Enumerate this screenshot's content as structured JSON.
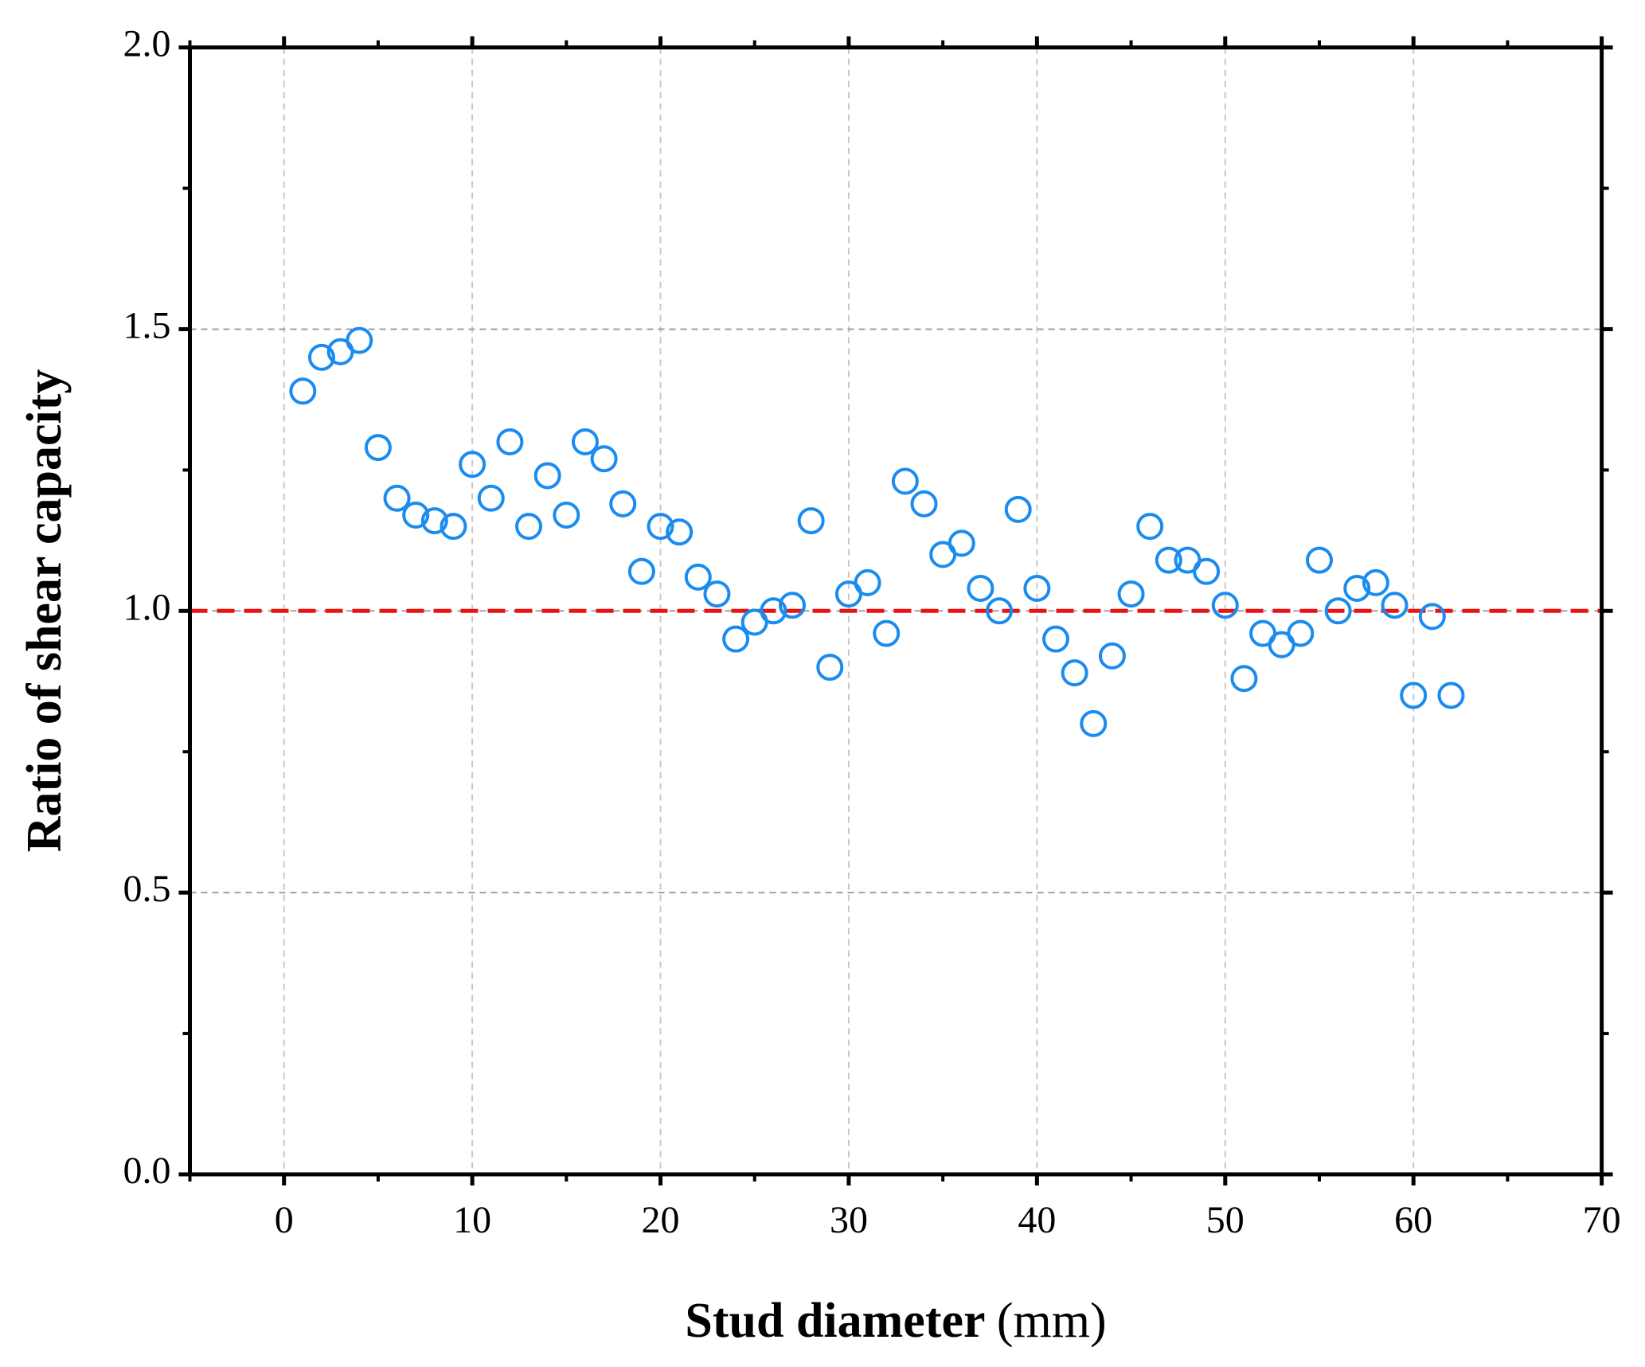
{
  "chart_data": {
    "type": "scatter",
    "xlabel": "Stud diameter",
    "xlabel_unit": "(mm)",
    "ylabel": "Ratio of shear capacity",
    "x": [
      1,
      2,
      3,
      4,
      5,
      6,
      7,
      8,
      9,
      10,
      11,
      12,
      13,
      14,
      15,
      16,
      17,
      18,
      19,
      20,
      21,
      22,
      23,
      24,
      25,
      26,
      27,
      28,
      29,
      30,
      31,
      32,
      33,
      34,
      35,
      36,
      37,
      38,
      39,
      40,
      41,
      42,
      43,
      44,
      45,
      46,
      47,
      48,
      49,
      50,
      51,
      52,
      53,
      54,
      55,
      56,
      57,
      58,
      59,
      60,
      61,
      62
    ],
    "values": [
      1.39,
      1.45,
      1.46,
      1.48,
      1.29,
      1.2,
      1.17,
      1.16,
      1.15,
      1.26,
      1.2,
      1.3,
      1.15,
      1.24,
      1.17,
      1.3,
      1.27,
      1.19,
      1.07,
      1.15,
      1.14,
      1.06,
      1.03,
      0.95,
      0.98,
      1.0,
      1.01,
      1.16,
      0.9,
      1.03,
      1.05,
      0.96,
      1.23,
      1.19,
      1.1,
      1.12,
      1.04,
      1.0,
      1.18,
      1.04,
      0.95,
      0.89,
      0.8,
      0.92,
      1.03,
      1.15,
      1.09,
      1.09,
      1.07,
      1.01,
      0.88,
      0.96,
      0.94,
      0.96,
      1.09,
      1.0,
      1.04,
      1.05,
      1.01,
      0.85,
      0.99,
      0.85
    ],
    "color": "#1a8cf0",
    "reference_line": 1,
    "reference_color": "#ee1111",
    "xlim": [
      -5,
      70
    ],
    "xticks": [
      0,
      10,
      20,
      30,
      40,
      50,
      60,
      70
    ],
    "xminorticks": [
      -5,
      5,
      15,
      25,
      35,
      45,
      55,
      65
    ],
    "ylim": [
      0,
      2
    ],
    "yticks": [
      {
        "value": 0,
        "label": "0.0"
      },
      0.5,
      {
        "value": 1,
        "label": "1.0"
      },
      1.5,
      {
        "value": 2,
        "label": "2.0"
      }
    ],
    "yminorticks": [
      0.25,
      0.75,
      1.25,
      1.75
    ],
    "grid": true
  }
}
